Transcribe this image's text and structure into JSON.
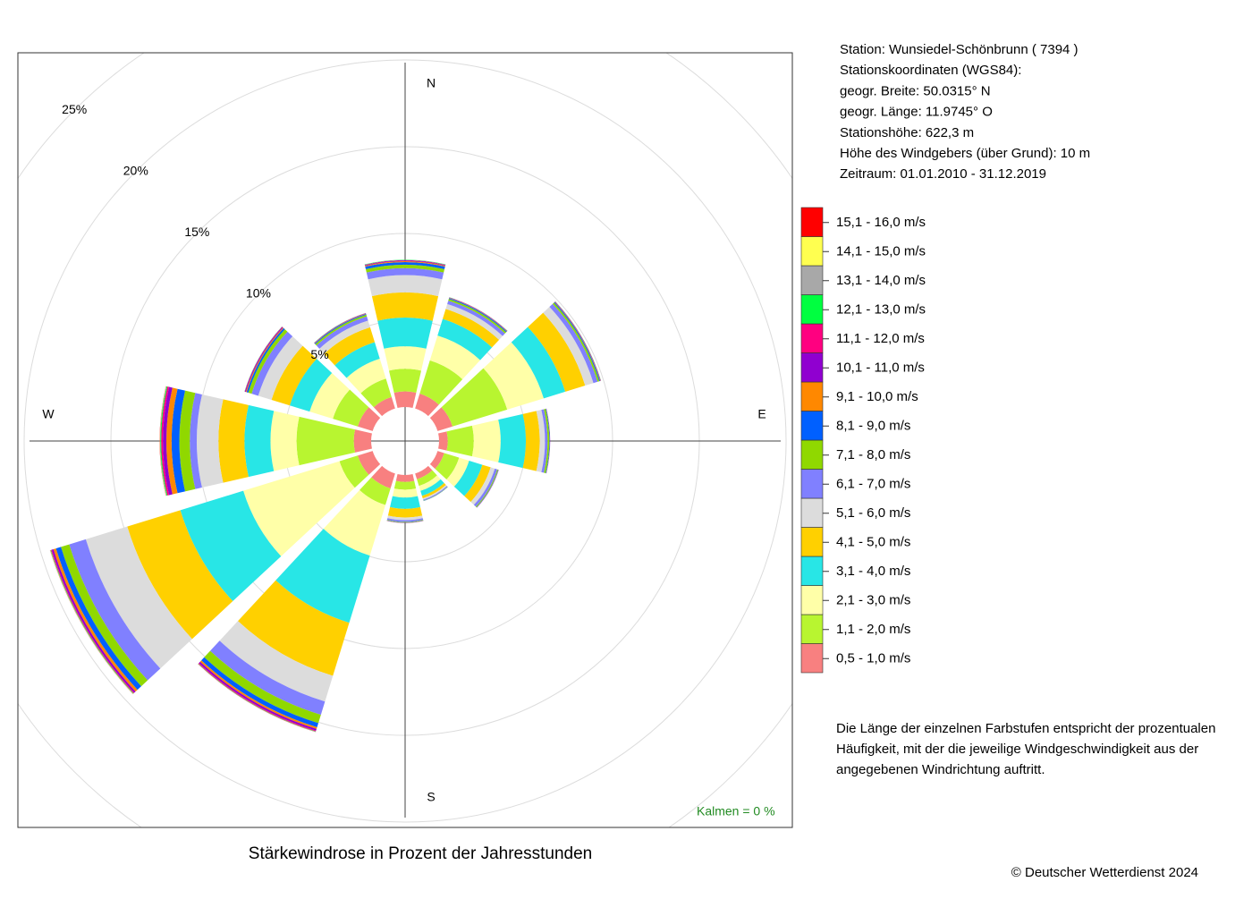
{
  "chart_data": {
    "type": "windrose",
    "title": "Stärkewindrose in Prozent der Jahresstunden",
    "compass": [
      "N",
      "E",
      "S",
      "W"
    ],
    "rlim": [
      0,
      25
    ],
    "rticks": [
      {
        "value": 5,
        "label": "5%"
      },
      {
        "value": 10,
        "label": "10%"
      },
      {
        "value": 15,
        "label": "15%"
      },
      {
        "value": 20,
        "label": "20%"
      },
      {
        "value": 25,
        "label": "25%"
      }
    ],
    "grid": true,
    "series": [
      {
        "name": "0,5 - 1,0 m/s",
        "color": "#f88080",
        "values": [
          0.9,
          0.9,
          0.9,
          0.5,
          0.4,
          0.35,
          0.4,
          0.9,
          0.9,
          1.0,
          0.9,
          0.7
        ]
      },
      {
        "name": "1,1 - 2,0 m/s",
        "color": "#b8f530",
        "values": [
          1.3,
          2.0,
          3.3,
          1.5,
          0.9,
          0.4,
          0.45,
          1.0,
          1.1,
          3.3,
          1.5,
          1.1
        ]
      },
      {
        "name": "2,1 - 3,0 m/s",
        "color": "#ffffa8",
        "values": [
          1.3,
          1.5,
          2.2,
          1.55,
          0.6,
          0.3,
          0.45,
          3.05,
          5.8,
          1.5,
          1.4,
          1.2
        ]
      },
      {
        "name": "3,1 - 4,0 m/s",
        "color": "#28e6e6",
        "values": [
          1.65,
          1.0,
          1.3,
          1.45,
          0.8,
          0.3,
          0.65,
          4.05,
          3.8,
          1.5,
          1.2,
          1.0
        ]
      },
      {
        "name": "4,1 - 5,0 m/s",
        "color": "#ffd000",
        "values": [
          1.45,
          0.6,
          1.2,
          0.8,
          0.5,
          0.15,
          0.5,
          3.2,
          3.2,
          1.5,
          1.1,
          0.9
        ]
      },
      {
        "name": "5,1 - 6,0 m/s",
        "color": "#dcdcdc",
        "values": [
          1.0,
          0.3,
          0.5,
          0.3,
          0.25,
          0.08,
          0.15,
          1.55,
          2.5,
          1.25,
          0.8,
          0.4
        ]
      },
      {
        "name": "6,1 - 7,0 m/s",
        "color": "#8080ff",
        "values": [
          0.4,
          0.2,
          0.25,
          0.15,
          0.15,
          0.05,
          0.1,
          0.8,
          1.0,
          0.4,
          0.4,
          0.25
        ]
      },
      {
        "name": "7,1 - 8,0 m/s",
        "color": "#90d800",
        "values": [
          0.2,
          0.1,
          0.1,
          0.1,
          0.05,
          0.02,
          0.03,
          0.5,
          0.5,
          0.6,
          0.2,
          0.1
        ]
      },
      {
        "name": "8,1 - 9,0 m/s",
        "color": "#0060ff",
        "values": [
          0.15,
          0.05,
          0.05,
          0.03,
          0.02,
          0.01,
          0.02,
          0.25,
          0.3,
          0.45,
          0.1,
          0.05
        ]
      },
      {
        "name": "9,1 - 10,0 m/s",
        "color": "#ff8800",
        "values": [
          0.05,
          0.02,
          0.02,
          0.01,
          0.01,
          0,
          0.01,
          0.1,
          0.15,
          0.3,
          0.05,
          0.02
        ]
      },
      {
        "name": "10,1 - 11,0 m/s",
        "color": "#9000d0",
        "values": [
          0.04,
          0.02,
          0.02,
          0.01,
          0.01,
          0,
          0.01,
          0.1,
          0.1,
          0.2,
          0.05,
          0.02
        ]
      },
      {
        "name": "11,1 - 12,0 m/s",
        "color": "#ff0080",
        "values": [
          0.02,
          0.01,
          0.01,
          0,
          0,
          0,
          0,
          0.05,
          0.05,
          0.1,
          0.02,
          0.01
        ]
      },
      {
        "name": "12,1 - 13,0 m/s",
        "color": "#00ff40",
        "values": [
          0.02,
          0.01,
          0.01,
          0,
          0,
          0,
          0,
          0.02,
          0.03,
          0.05,
          0.01,
          0.01
        ]
      },
      {
        "name": "13,1 - 14,0 m/s",
        "color": "#a8a8a8",
        "values": [
          0.01,
          0,
          0,
          0,
          0,
          0,
          0,
          0.01,
          0.01,
          0.02,
          0,
          0
        ]
      },
      {
        "name": "14,1 - 15,0 m/s",
        "color": "#ffff50",
        "values": [
          0,
          0,
          0,
          0,
          0,
          0,
          0,
          0,
          0.01,
          0.01,
          0,
          0
        ]
      },
      {
        "name": "15,1 - 16,0 m/s",
        "color": "#ff0000",
        "values": [
          0,
          0,
          0,
          0,
          0,
          0,
          0,
          0.01,
          0.01,
          0.01,
          0,
          0
        ]
      }
    ],
    "calm_label": "Kalmen  =  0 %",
    "info": [
      "Station:  Wunsiedel-Schönbrunn  ( 7394 )",
      "Stationskoordinaten (WGS84):",
      "geogr. Breite: 50.0315° N",
      "geogr. Länge: 11.9745° O",
      "Stationshöhe: 622,3 m",
      "Höhe des Windgebers (über Grund): 10 m",
      "Zeitraum: 01.01.2010 - 31.12.2019"
    ],
    "note": [
      "Die Länge der einzelnen Farbstufen entspricht der prozentualen",
      "Häufigkeit, mit der die jeweilige Windgeschwindigkeit aus der",
      "angegebenen Windrichtung auftritt."
    ],
    "copyright": "© Deutscher Wetterdienst  2024"
  }
}
